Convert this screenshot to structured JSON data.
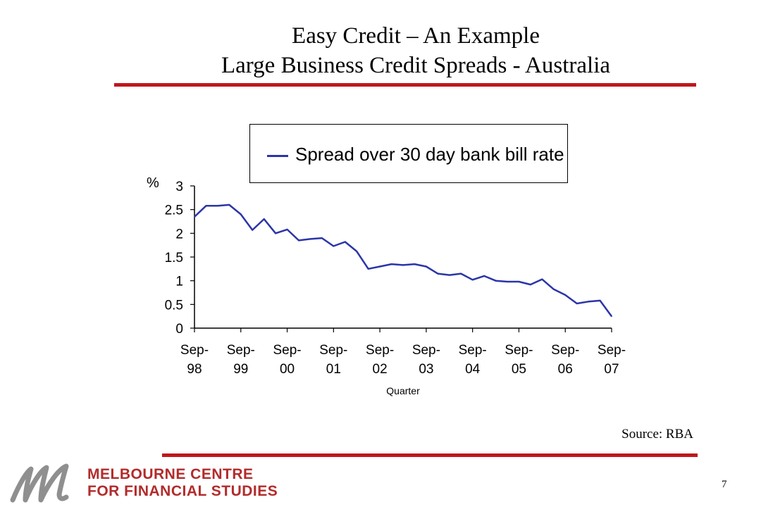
{
  "slide": {
    "title_line1": "Easy Credit – An Example",
    "title_line2": "Large Business Credit Spreads - Australia",
    "source": "Source: RBA",
    "page_number": "7"
  },
  "brand": {
    "org_line1": "MELBOURNE CENTRE",
    "org_line2": "FOR FINANCIAL STUDIES",
    "logo": "stylized-m-logo",
    "accent_color": "#c0161c",
    "brand_text_color": "#b22b2b"
  },
  "chart_data": {
    "type": "line",
    "title": "",
    "xlabel": "Quarter",
    "ylabel": "%",
    "ylim": [
      0,
      3
    ],
    "yticks": [
      "0",
      "0.5",
      "1",
      "1.5",
      "2",
      "2.5",
      "3"
    ],
    "xtick_labels": [
      [
        "Sep-",
        "98"
      ],
      [
        "Sep-",
        "99"
      ],
      [
        "Sep-",
        "00"
      ],
      [
        "Sep-",
        "01"
      ],
      [
        "Sep-",
        "02"
      ],
      [
        "Sep-",
        "03"
      ],
      [
        "Sep-",
        "04"
      ],
      [
        "Sep-",
        "05"
      ],
      [
        "Sep-",
        "06"
      ],
      [
        "Sep-",
        "07"
      ]
    ],
    "grid": false,
    "legend_position": "top",
    "series": [
      {
        "name": "Spread over 30 day bank bill rate",
        "color": "#2b35a8",
        "values": [
          2.35,
          2.58,
          2.58,
          2.6,
          2.4,
          2.07,
          2.3,
          2.0,
          2.08,
          1.85,
          1.88,
          1.9,
          1.73,
          1.82,
          1.62,
          1.25,
          1.3,
          1.35,
          1.33,
          1.35,
          1.3,
          1.15,
          1.12,
          1.15,
          1.02,
          1.1,
          1.0,
          0.98,
          0.98,
          0.92,
          1.03,
          0.82,
          0.7,
          0.52,
          0.56,
          0.58,
          0.25
        ]
      }
    ]
  }
}
